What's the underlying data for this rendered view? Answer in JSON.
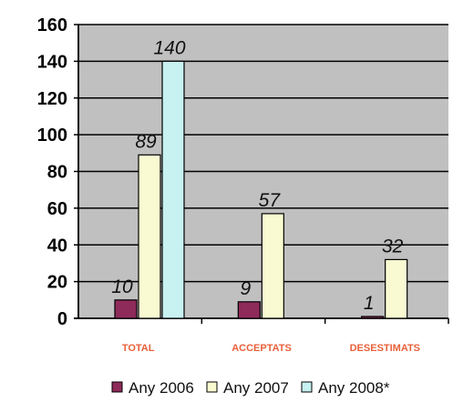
{
  "chart_data": {
    "type": "bar",
    "categories": [
      "TOTAL",
      "ACCEPTATS",
      "DESESTIMATS"
    ],
    "series": [
      {
        "name": "Any 2006",
        "values": [
          10,
          9,
          1
        ],
        "color": "#8e2b5a"
      },
      {
        "name": "Any 2007",
        "values": [
          89,
          57,
          32
        ],
        "color": "#fafad2"
      },
      {
        "name": "Any 2008*",
        "values": [
          140,
          null,
          null
        ],
        "color": "#c8f1f1"
      }
    ],
    "ylim": [
      0,
      160
    ],
    "yticks": [
      0,
      20,
      40,
      60,
      80,
      100,
      120,
      140,
      160
    ],
    "grid": true,
    "plot_background": "#c0c0c0",
    "category_label_color": "#e8603a",
    "legend_position": "bottom"
  }
}
